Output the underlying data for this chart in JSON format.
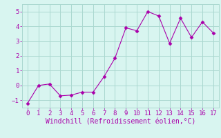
{
  "x": [
    0,
    1,
    2,
    3,
    4,
    5,
    6,
    7,
    8,
    9,
    10,
    11,
    12,
    13,
    14,
    15,
    16,
    17
  ],
  "y": [
    -1.2,
    0.0,
    0.1,
    -0.7,
    -0.65,
    -0.45,
    -0.45,
    0.6,
    1.85,
    3.9,
    3.7,
    5.0,
    4.7,
    2.85,
    4.55,
    3.25,
    4.3,
    3.55
  ],
  "line_color": "#aa00aa",
  "marker": "D",
  "marker_size": 2.5,
  "bg_color": "#d8f5f0",
  "grid_color": "#aad8d0",
  "xlabel": "Windchill (Refroidissement éolien,°C)",
  "xlabel_color": "#aa00aa",
  "xlabel_fontsize": 7,
  "tick_color": "#aa00aa",
  "tick_fontsize": 6.5,
  "ylim": [
    -1.5,
    5.5
  ],
  "xlim": [
    -0.5,
    17.5
  ],
  "yticks": [
    -1,
    0,
    1,
    2,
    3,
    4,
    5
  ],
  "xticks": [
    0,
    1,
    2,
    3,
    4,
    5,
    6,
    7,
    8,
    9,
    10,
    11,
    12,
    13,
    14,
    15,
    16,
    17
  ]
}
